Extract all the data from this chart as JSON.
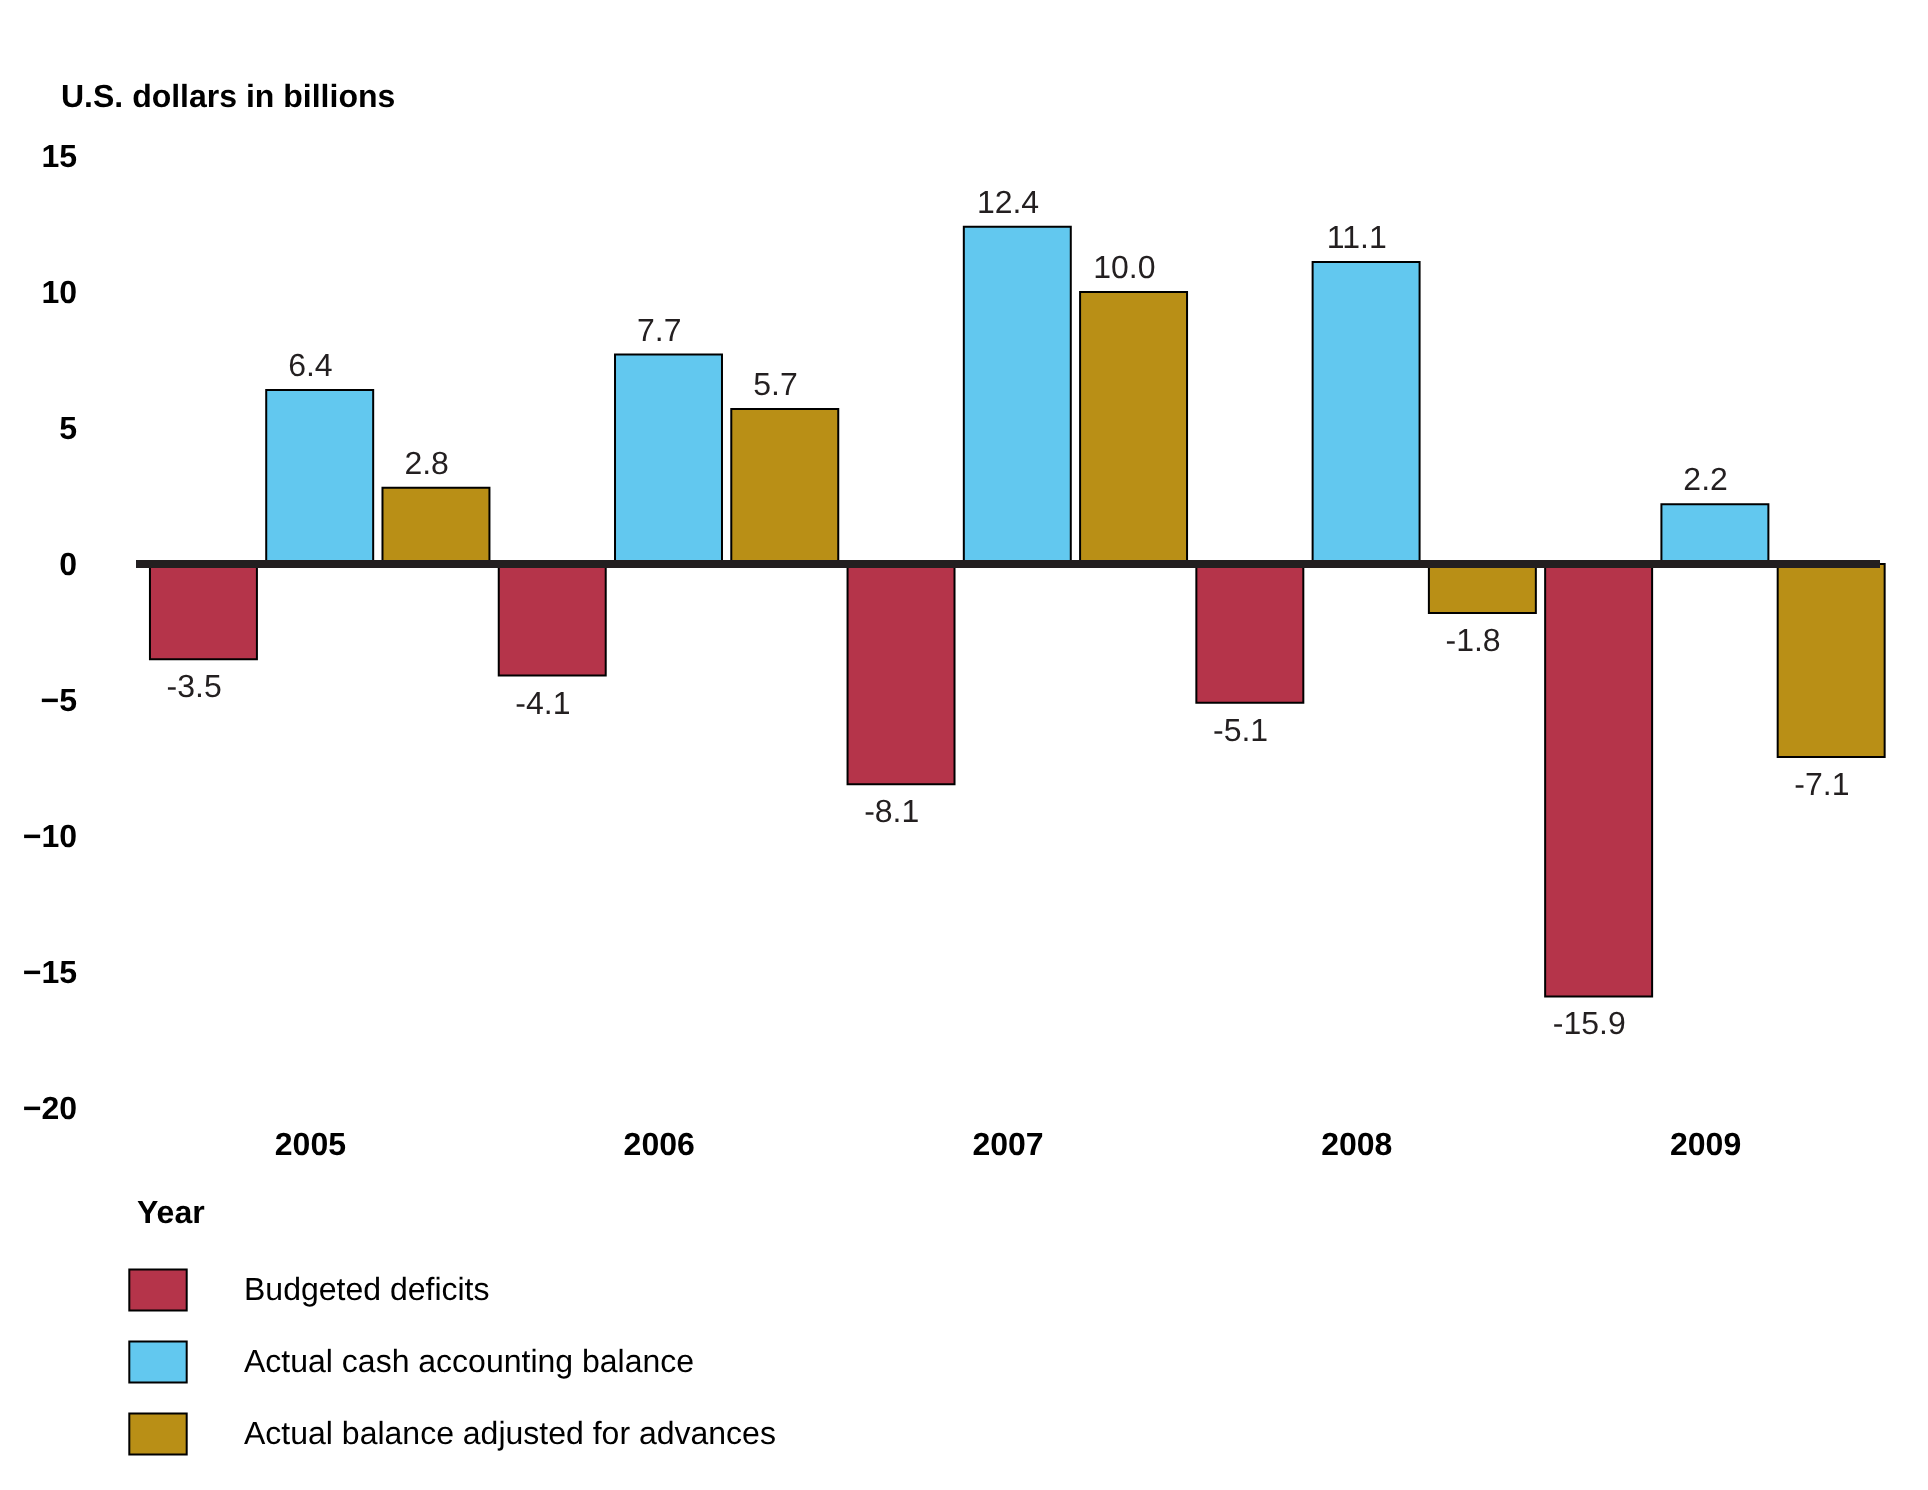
{
  "chart_data": {
    "type": "bar",
    "ylabel": "U.S. dollars in billions",
    "xlabel": "Year",
    "categories": [
      "2005",
      "2006",
      "2007",
      "2008",
      "2009"
    ],
    "series": [
      {
        "name": "Budgeted deficits",
        "color": "#b5344a",
        "values": [
          -3.5,
          -4.1,
          -8.1,
          -5.1,
          -15.9
        ],
        "value_labels": [
          "-3.5",
          "-4.1",
          "-8.1",
          "-5.1",
          "-15.9"
        ]
      },
      {
        "name": "Actual cash accounting balance",
        "color": "#62c8ef",
        "values": [
          6.4,
          7.7,
          12.4,
          11.1,
          2.2
        ],
        "value_labels": [
          "6.4",
          "7.7",
          "12.4",
          "11.1",
          "2.2"
        ]
      },
      {
        "name": "Actual balance adjusted for advances",
        "color": "#b98f16",
        "values": [
          2.8,
          5.7,
          10.0,
          -1.8,
          -7.1
        ],
        "value_labels": [
          "2.8",
          "5.7",
          "10.0",
          "-1.8",
          "-7.1"
        ]
      }
    ],
    "ylim": [
      -20,
      15
    ],
    "yticks": [
      -20,
      -15,
      -10,
      -5,
      0,
      5,
      10,
      15
    ],
    "ref_lines": [
      {
        "axis": "y",
        "value": 0,
        "color": "#231f20"
      }
    ],
    "grid": false,
    "legend": "bottom"
  }
}
